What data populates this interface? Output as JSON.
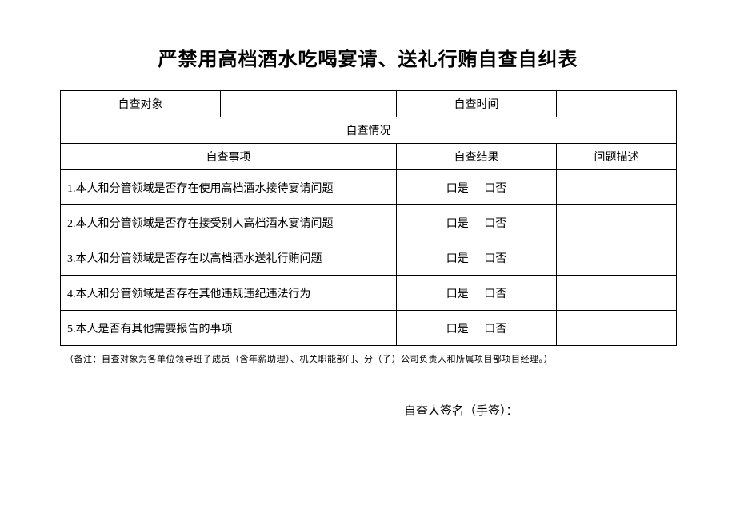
{
  "title": "严禁用高档酒水吃喝宴请、送礼行贿自查自纠表",
  "header": {
    "subject_label": "自查对象",
    "subject_value": "",
    "time_label": "自查时间",
    "time_value": ""
  },
  "section_label": "自查情况",
  "subheaders": {
    "item": "自查事项",
    "result": "自查结果",
    "desc": "问题描述"
  },
  "checkbox": {
    "yes": "口是",
    "no": "口否"
  },
  "items": [
    {
      "text": "1.本人和分管领域是否存在使用高档酒水接待宴请问题"
    },
    {
      "text": "2.本人和分管领域是否存在接受别人高档酒水宴请问题"
    },
    {
      "text": "3.本人和分管领域是否存在以高档酒水送礼行贿问题"
    },
    {
      "text": "4.本人和分管领域是否存在其他违规违纪违法行为"
    },
    {
      "text": "5.本人是否有其他需要报告的事项"
    }
  ],
  "note": "（备注：自查对象为各单位领导班子成员（含年薪助理）、机关职能部门、分（子）公司负责人和所属项目部项目经理。）",
  "signature_label": "自查人签名（手签）："
}
